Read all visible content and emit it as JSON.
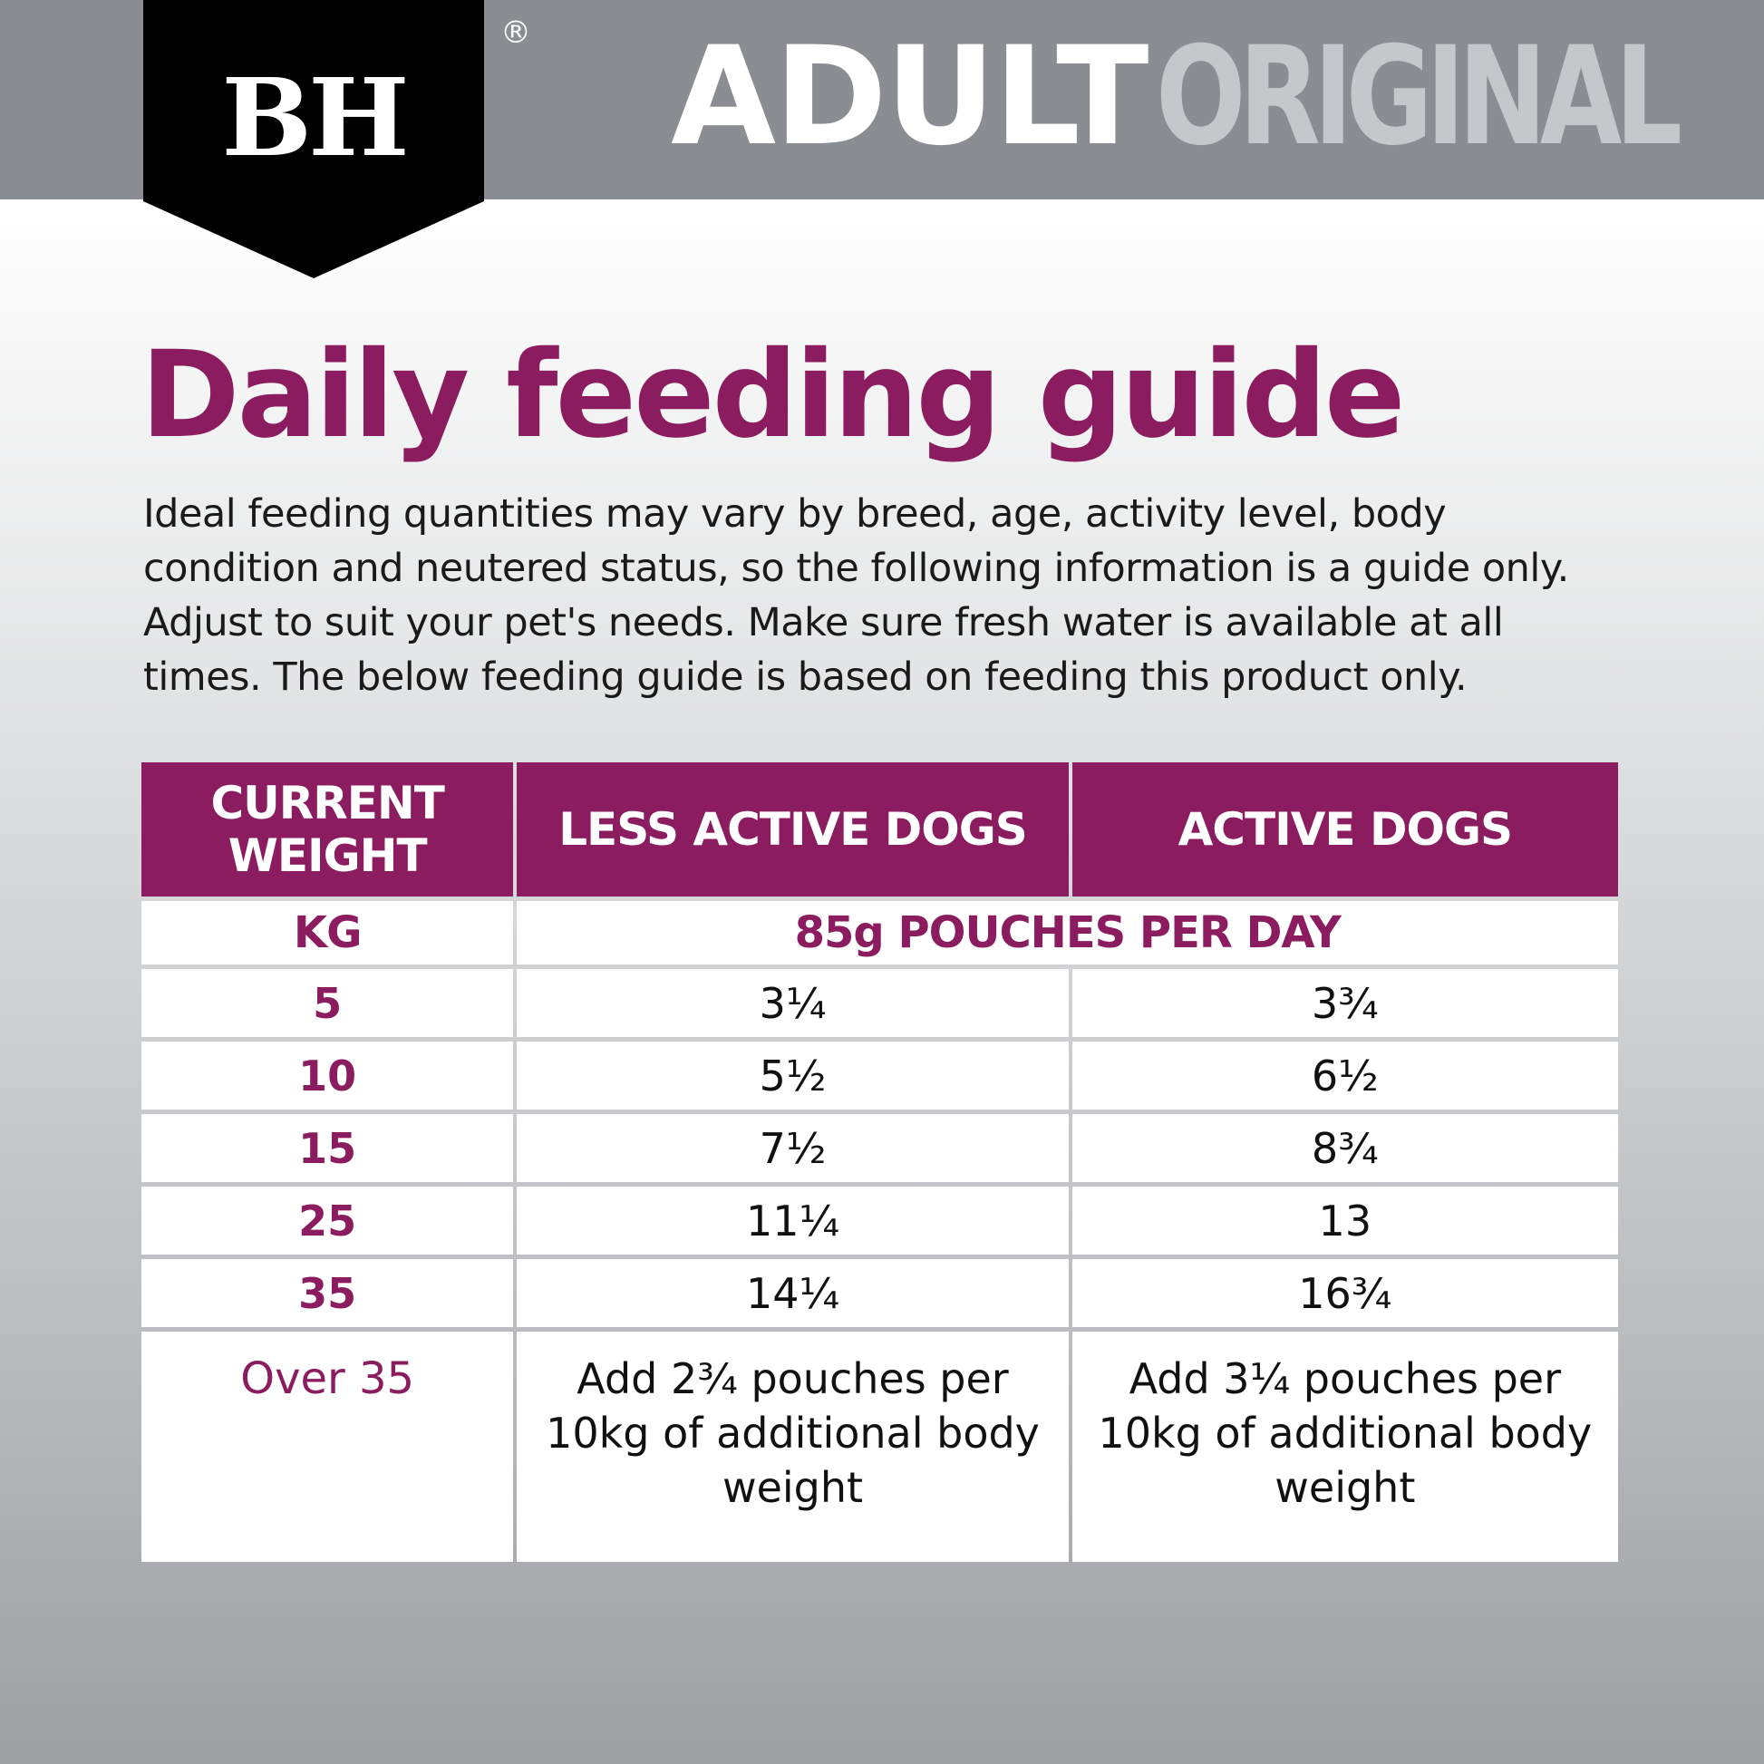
{
  "header": {
    "brand": "BH",
    "registered": "®",
    "title_primary": "ADULT",
    "title_secondary": "ORIGINAL"
  },
  "title": "Daily feeding guide",
  "intro": "Ideal feeding quantities may vary by breed, age, activity level, body condition and neutered status, so the following information is a guide only. Adjust to suit your pet's needs. Make sure fresh water is available at all times. The below feeding guide is based on feeding this product only.",
  "table": {
    "header": [
      "CURRENT WEIGHT",
      "LESS ACTIVE DOGS",
      "ACTIVE DOGS"
    ],
    "subheader": [
      "KG",
      "85g POUCHES PER DAY"
    ],
    "rows": [
      [
        "5",
        "3¼",
        "3¾"
      ],
      [
        "10",
        "5½",
        "6½"
      ],
      [
        "15",
        "7½",
        "8¾"
      ],
      [
        "25",
        "11¼",
        "13"
      ],
      [
        "35",
        "14¼",
        "16¾"
      ],
      [
        "Over 35",
        "Add 2¾ pouches per 10kg of additional body weight",
        "Add 3¼ pouches per 10kg of additional body weight"
      ]
    ]
  }
}
